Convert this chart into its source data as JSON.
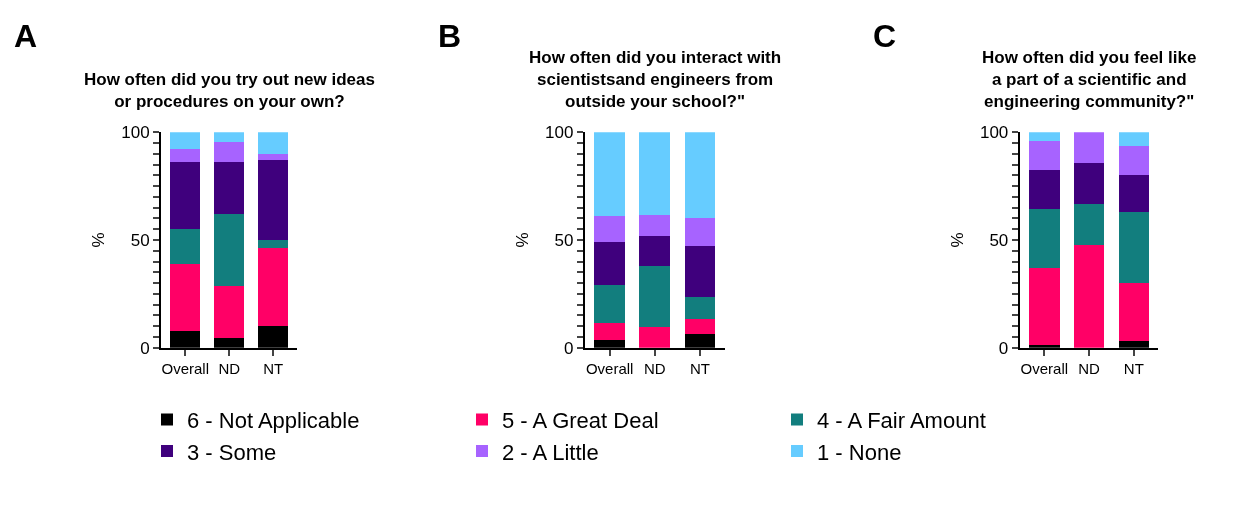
{
  "chart_data": [
    {
      "type": "bar",
      "stacked": true,
      "title": "How often did you try out new ideas\nor procedures on your own?",
      "ylabel": "%",
      "annotations": [
        "A"
      ],
      "categories": [
        "Overall",
        "ND",
        "NT"
      ],
      "ylim": [
        0,
        100
      ],
      "yticks": [
        0,
        {
          "value": 5,
          "label": null
        },
        {
          "value": 10,
          "label": null
        },
        {
          "value": 15,
          "label": null
        },
        {
          "value": 20,
          "label": null
        },
        {
          "value": 25,
          "label": null
        },
        {
          "value": 30,
          "label": null
        },
        {
          "value": 35,
          "label": null
        },
        {
          "value": 40,
          "label": null
        },
        {
          "value": 45,
          "label": null
        },
        50,
        {
          "value": 55,
          "label": null
        },
        {
          "value": 60,
          "label": null
        },
        {
          "value": 65,
          "label": null
        },
        {
          "value": 70,
          "label": null
        },
        {
          "value": 75,
          "label": null
        },
        {
          "value": 80,
          "label": null
        },
        {
          "value": 85,
          "label": null
        },
        {
          "value": 90,
          "label": null
        },
        {
          "value": 95,
          "label": null
        },
        100
      ],
      "legend": "bottom",
      "series": [
        {
          "name": "6 - Not Applicable",
          "color": "#000000",
          "values": [
            8,
            4.5,
            10
          ]
        },
        {
          "name": "5 - A Great Deal",
          "color": "#ff0066",
          "values": [
            31,
            24,
            36.5
          ]
        },
        {
          "name": "4 - A Fair Amount",
          "color": "#127e7e",
          "values": [
            16,
            33.5,
            3.5
          ]
        },
        {
          "name": "3 - Some",
          "color": "#3f007d",
          "values": [
            31,
            24,
            37
          ]
        },
        {
          "name": "2 - A Little",
          "color": "#a763ff",
          "values": [
            6,
            9.5,
            3
          ]
        },
        {
          "name": "1 - None",
          "color": "#66ccff",
          "values": [
            8,
            4.5,
            10
          ]
        }
      ]
    },
    {
      "type": "bar",
      "stacked": true,
      "title": "How often did you interact with\nscientistsand engineers from\noutside your school?\"",
      "ylabel": "%",
      "annotations": [
        "B"
      ],
      "categories": [
        "Overall",
        "ND",
        "NT"
      ],
      "ylim": [
        0,
        100
      ],
      "yticks": [
        0,
        {
          "value": 5,
          "label": null
        },
        {
          "value": 10,
          "label": null
        },
        {
          "value": 15,
          "label": null
        },
        {
          "value": 20,
          "label": null
        },
        {
          "value": 25,
          "label": null
        },
        {
          "value": 30,
          "label": null
        },
        {
          "value": 35,
          "label": null
        },
        {
          "value": 40,
          "label": null
        },
        {
          "value": 45,
          "label": null
        },
        50,
        {
          "value": 55,
          "label": null
        },
        {
          "value": 60,
          "label": null
        },
        {
          "value": 65,
          "label": null
        },
        {
          "value": 70,
          "label": null
        },
        {
          "value": 75,
          "label": null
        },
        {
          "value": 80,
          "label": null
        },
        {
          "value": 85,
          "label": null
        },
        {
          "value": 90,
          "label": null
        },
        {
          "value": 95,
          "label": null
        },
        100
      ],
      "series": [
        {
          "name": "6 - Not Applicable",
          "color": "#000000",
          "values": [
            3.5,
            0,
            6.5
          ]
        },
        {
          "name": "5 - A Great Deal",
          "color": "#ff0066",
          "values": [
            8,
            9.5,
            7
          ]
        },
        {
          "name": "4 - A Fair Amount",
          "color": "#127e7e",
          "values": [
            17.5,
            28.5,
            10
          ]
        },
        {
          "name": "3 - Some",
          "color": "#3f007d",
          "values": [
            20,
            14,
            23.5
          ]
        },
        {
          "name": "2 - A Little",
          "color": "#a763ff",
          "values": [
            12,
            9.5,
            13
          ]
        },
        {
          "name": "1 - None",
          "color": "#66ccff",
          "values": [
            39,
            38.5,
            40
          ]
        }
      ]
    },
    {
      "type": "bar",
      "stacked": true,
      "title": "How often did you feel like\na part of a scientific and\nengineering community?\"",
      "ylabel": "%",
      "annotations": [
        "C"
      ],
      "categories": [
        "Overall",
        "ND",
        "NT"
      ],
      "ylim": [
        0,
        100
      ],
      "yticks": [
        0,
        {
          "value": 5,
          "label": null
        },
        {
          "value": 10,
          "label": null
        },
        {
          "value": 15,
          "label": null
        },
        {
          "value": 20,
          "label": null
        },
        {
          "value": 25,
          "label": null
        },
        {
          "value": 30,
          "label": null
        },
        {
          "value": 35,
          "label": null
        },
        {
          "value": 40,
          "label": null
        },
        {
          "value": 45,
          "label": null
        },
        50,
        {
          "value": 55,
          "label": null
        },
        {
          "value": 60,
          "label": null
        },
        {
          "value": 65,
          "label": null
        },
        {
          "value": 70,
          "label": null
        },
        {
          "value": 75,
          "label": null
        },
        {
          "value": 80,
          "label": null
        },
        {
          "value": 85,
          "label": null
        },
        {
          "value": 90,
          "label": null
        },
        {
          "value": 95,
          "label": null
        },
        100
      ],
      "series": [
        {
          "name": "6 - Not Applicable",
          "color": "#000000",
          "values": [
            1.5,
            0,
            3
          ]
        },
        {
          "name": "5 - A Great Deal",
          "color": "#ff0066",
          "values": [
            35.5,
            47.5,
            27
          ]
        },
        {
          "name": "4 - A Fair Amount",
          "color": "#127e7e",
          "values": [
            27.5,
            19,
            33
          ]
        },
        {
          "name": "3 - Some",
          "color": "#3f007d",
          "values": [
            18,
            19,
            17
          ]
        },
        {
          "name": "2 - A Little",
          "color": "#a763ff",
          "values": [
            13.5,
            14.5,
            13.5
          ]
        },
        {
          "name": "1 - None",
          "color": "#66ccff",
          "values": [
            4,
            0,
            6.5
          ]
        }
      ]
    }
  ]
}
